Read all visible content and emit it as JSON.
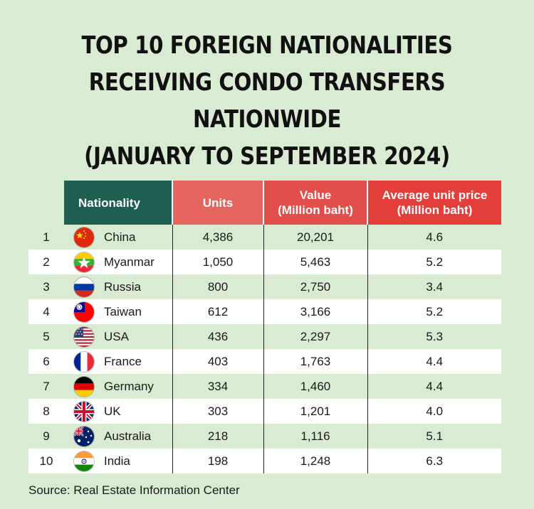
{
  "title_lines": [
    "TOP 10 FOREIGN NATIONALITIES",
    "RECEIVING CONDO TRANSFERS",
    "NATIONWIDE",
    "(JANUARY TO SEPTEMBER 2024)"
  ],
  "headers": {
    "nationality": "Nationality",
    "units": "Units",
    "value_line1": "Value",
    "value_line2": "(Million baht)",
    "avg_line1": "Average unit price",
    "avg_line2": "(Million baht)"
  },
  "colors": {
    "background": "#d9ecd3",
    "nationality_header": "#1f5f51",
    "red_header": "#e24e4a"
  },
  "chart_data": {
    "type": "table",
    "columns": [
      "",
      "Nationality",
      "Units",
      "Value (Million baht)",
      "Average unit price (Million baht)"
    ],
    "rows": [
      {
        "rank": "1",
        "nationality": "China",
        "flag": "china-flag-icon",
        "units": "4,386",
        "value": "20,201",
        "avg_price": "4.6"
      },
      {
        "rank": "2",
        "nationality": "Myanmar",
        "flag": "myanmar-flag-icon",
        "units": "1,050",
        "value": "5,463",
        "avg_price": "5.2"
      },
      {
        "rank": "3",
        "nationality": "Russia",
        "flag": "russia-flag-icon",
        "units": "800",
        "value": "2,750",
        "avg_price": "3.4"
      },
      {
        "rank": "4",
        "nationality": "Taiwan",
        "flag": "taiwan-flag-icon",
        "units": "612",
        "value": "3,166",
        "avg_price": "5.2"
      },
      {
        "rank": "5",
        "nationality": "USA",
        "flag": "usa-flag-icon",
        "units": "436",
        "value": "2,297",
        "avg_price": "5.3"
      },
      {
        "rank": "6",
        "nationality": "France",
        "flag": "france-flag-icon",
        "units": "403",
        "value": "1,763",
        "avg_price": "4.4"
      },
      {
        "rank": "7",
        "nationality": "Germany",
        "flag": "germany-flag-icon",
        "units": "334",
        "value": "1,460",
        "avg_price": "4.4"
      },
      {
        "rank": "8",
        "nationality": "UK",
        "flag": "uk-flag-icon",
        "units": "303",
        "value": "1,201",
        "avg_price": "4.0"
      },
      {
        "rank": "9",
        "nationality": "Australia",
        "flag": "australia-flag-icon",
        "units": "218",
        "value": "1,116",
        "avg_price": "5.1"
      },
      {
        "rank": "10",
        "nationality": "India",
        "flag": "india-flag-icon",
        "units": "198",
        "value": "1,248",
        "avg_price": "6.3"
      }
    ]
  },
  "source": "Source: Real Estate Information Center"
}
